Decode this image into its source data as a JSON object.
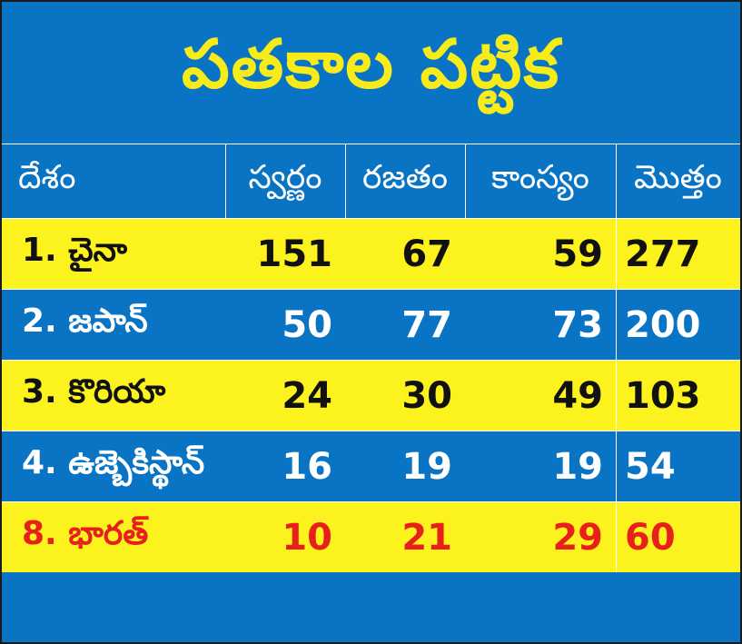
{
  "title": "పతకాల పట్టిక",
  "headers": [
    "దేశం",
    "స్వర్ణం",
    "రజతం",
    "కాంస్యం",
    "మొత్తం"
  ],
  "rows": [
    {
      "country": "1. చైనా",
      "gold": "151",
      "silver": "67",
      "bronze": "59",
      "total": "277"
    },
    {
      "country": "2. జపాన్",
      "gold": "50",
      "silver": "77",
      "bronze": "73",
      "total": "200"
    },
    {
      "country": "3. కొరియా",
      "gold": "24",
      "silver": "30",
      "bronze": "49",
      "total": "103"
    },
    {
      "country": "4. ఉజ్బెకిస్థాన్",
      "gold": "16",
      "silver": "19",
      "bronze": "19",
      "total": "54"
    },
    {
      "country": "8. భారత్",
      "gold": "10",
      "silver": "21",
      "bronze": "29",
      "total": "60"
    }
  ],
  "colors": {
    "blue": "#0a74c4",
    "yellow": "#fbf21e",
    "highlight": "#e8201c"
  }
}
